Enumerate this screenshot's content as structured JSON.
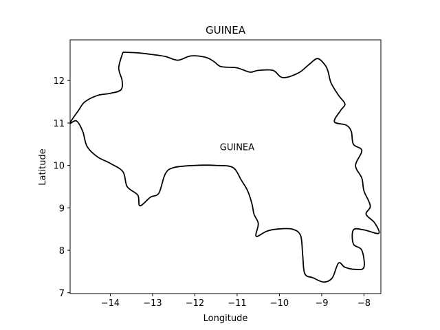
{
  "chart_data": {
    "type": "map",
    "title": "GUINEA",
    "xlabel": "Longitude",
    "ylabel": "Latitude",
    "xlim": [
      -14.95,
      -7.6
    ],
    "ylim": [
      6.98,
      12.96
    ],
    "xticks": [
      -14,
      -13,
      -12,
      -11,
      -10,
      -9,
      -8
    ],
    "yticks": [
      7,
      8,
      9,
      10,
      11,
      12
    ],
    "xtick_labels": [
      "−14",
      "−13",
      "−12",
      "−11",
      "−10",
      "−9",
      "−8"
    ],
    "ytick_labels": [
      "7",
      "8",
      "9",
      "10",
      "11",
      "12"
    ],
    "grid": false,
    "annotations": [
      {
        "text": "GUINEA",
        "lon": -11.0,
        "lat": 10.36
      }
    ],
    "boundary": [
      [
        -13.7,
        12.67
      ],
      [
        -13.3,
        12.65
      ],
      [
        -13.05,
        12.62
      ],
      [
        -12.7,
        12.57
      ],
      [
        -12.4,
        12.48
      ],
      [
        -12.1,
        12.58
      ],
      [
        -11.75,
        12.55
      ],
      [
        -11.55,
        12.45
      ],
      [
        -11.38,
        12.33
      ],
      [
        -11.0,
        12.3
      ],
      [
        -10.7,
        12.2
      ],
      [
        -10.5,
        12.24
      ],
      [
        -10.15,
        12.24
      ],
      [
        -9.92,
        12.07
      ],
      [
        -9.55,
        12.18
      ],
      [
        -9.3,
        12.38
      ],
      [
        -9.1,
        12.52
      ],
      [
        -8.93,
        12.38
      ],
      [
        -8.85,
        12.22
      ],
      [
        -8.78,
        11.95
      ],
      [
        -8.6,
        11.65
      ],
      [
        -8.45,
        11.45
      ],
      [
        -8.55,
        11.3
      ],
      [
        -8.7,
        11.03
      ],
      [
        -8.42,
        10.95
      ],
      [
        -8.3,
        10.8
      ],
      [
        -8.25,
        10.5
      ],
      [
        -8.05,
        10.35
      ],
      [
        -8.2,
        10.0
      ],
      [
        -8.05,
        9.7
      ],
      [
        -8.0,
        9.4
      ],
      [
        -7.85,
        9.05
      ],
      [
        -7.95,
        8.85
      ],
      [
        -7.75,
        8.65
      ],
      [
        -7.65,
        8.4
      ],
      [
        -8.0,
        8.48
      ],
      [
        -8.25,
        8.48
      ],
      [
        -8.25,
        8.15
      ],
      [
        -8.05,
        8.0
      ],
      [
        -8.0,
        7.6
      ],
      [
        -8.2,
        7.55
      ],
      [
        -8.45,
        7.6
      ],
      [
        -8.6,
        7.7
      ],
      [
        -8.75,
        7.35
      ],
      [
        -8.95,
        7.25
      ],
      [
        -9.2,
        7.35
      ],
      [
        -9.4,
        7.45
      ],
      [
        -9.45,
        7.9
      ],
      [
        -9.5,
        8.35
      ],
      [
        -9.7,
        8.5
      ],
      [
        -10.05,
        8.5
      ],
      [
        -10.3,
        8.45
      ],
      [
        -10.55,
        8.33
      ],
      [
        -10.5,
        8.63
      ],
      [
        -10.6,
        8.85
      ],
      [
        -10.65,
        9.1
      ],
      [
        -10.75,
        9.4
      ],
      [
        -10.9,
        9.65
      ],
      [
        -11.1,
        9.95
      ],
      [
        -11.5,
        10.0
      ],
      [
        -12.0,
        10.0
      ],
      [
        -12.5,
        9.95
      ],
      [
        -12.7,
        9.8
      ],
      [
        -12.85,
        9.35
      ],
      [
        -13.05,
        9.25
      ],
      [
        -13.3,
        9.05
      ],
      [
        -13.35,
        9.3
      ],
      [
        -13.6,
        9.5
      ],
      [
        -13.7,
        9.85
      ],
      [
        -14.0,
        10.05
      ],
      [
        -14.3,
        10.2
      ],
      [
        -14.55,
        10.45
      ],
      [
        -14.65,
        10.8
      ],
      [
        -14.8,
        11.05
      ],
      [
        -14.95,
        11.0
      ],
      [
        -14.75,
        11.3
      ],
      [
        -14.6,
        11.5
      ],
      [
        -14.3,
        11.65
      ],
      [
        -14.0,
        11.7
      ],
      [
        -13.75,
        11.78
      ],
      [
        -13.72,
        12.0
      ],
      [
        -13.8,
        12.3
      ],
      [
        -13.7,
        12.67
      ]
    ]
  }
}
